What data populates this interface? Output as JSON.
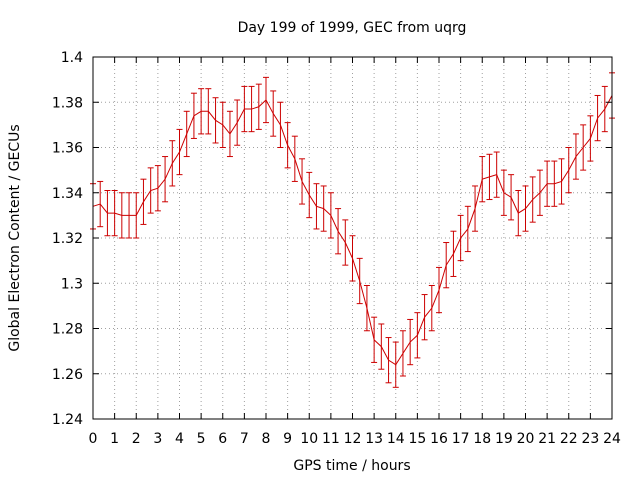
{
  "chart_data": {
    "type": "line",
    "title": "Day 199 of 1999, GEC from uqrg",
    "xlabel": "GPS time / hours",
    "ylabel": "Global Electron Content / GECUs",
    "xlim": [
      0,
      24
    ],
    "ylim": [
      1.24,
      1.4
    ],
    "grid": true,
    "x_ticks": [
      0,
      1,
      2,
      3,
      4,
      5,
      6,
      7,
      8,
      9,
      10,
      11,
      12,
      13,
      14,
      15,
      16,
      17,
      18,
      19,
      20,
      21,
      22,
      23,
      24
    ],
    "x_tick_labels": [
      "0",
      "1",
      "2",
      "3",
      "4",
      "5",
      "6",
      "7",
      "8",
      "9",
      "10",
      "11",
      "12",
      "13",
      "14",
      "15",
      "16",
      "17",
      "18",
      "19",
      "20",
      "21",
      "22",
      "23",
      "24"
    ],
    "y_ticks": [
      1.24,
      1.26,
      1.28,
      1.3,
      1.32,
      1.34,
      1.36,
      1.38,
      1.4
    ],
    "y_tick_labels": [
      "1.24",
      "1.26",
      "1.28",
      "1.3",
      "1.32",
      "1.34",
      "1.36",
      "1.38",
      "1.4"
    ],
    "series_color": "#cc0000",
    "series": [
      {
        "name": "GEC",
        "error": 0.01,
        "x": [
          0,
          0.333,
          0.667,
          1,
          1.333,
          1.667,
          2,
          2.333,
          2.667,
          3,
          3.333,
          3.667,
          4,
          4.333,
          4.667,
          5,
          5.333,
          5.667,
          6,
          6.333,
          6.667,
          7,
          7.333,
          7.667,
          8,
          8.333,
          8.667,
          9,
          9.333,
          9.667,
          10,
          10.333,
          10.667,
          11,
          11.333,
          11.667,
          12,
          12.333,
          12.667,
          13,
          13.333,
          13.667,
          14,
          14.333,
          14.667,
          15,
          15.333,
          15.667,
          16,
          16.333,
          16.667,
          17,
          17.333,
          17.667,
          18,
          18.333,
          18.667,
          19,
          19.333,
          19.667,
          20,
          20.333,
          20.667,
          21,
          21.333,
          21.667,
          22,
          22.333,
          22.667,
          23,
          23.333,
          23.667,
          24
        ],
        "values": [
          1.334,
          1.335,
          1.331,
          1.331,
          1.33,
          1.33,
          1.33,
          1.336,
          1.341,
          1.342,
          1.346,
          1.353,
          1.358,
          1.366,
          1.374,
          1.376,
          1.376,
          1.372,
          1.37,
          1.366,
          1.371,
          1.377,
          1.377,
          1.378,
          1.381,
          1.375,
          1.37,
          1.361,
          1.355,
          1.345,
          1.339,
          1.334,
          1.333,
          1.33,
          1.323,
          1.318,
          1.311,
          1.301,
          1.289,
          1.275,
          1.272,
          1.266,
          1.264,
          1.269,
          1.274,
          1.277,
          1.285,
          1.289,
          1.297,
          1.308,
          1.313,
          1.32,
          1.324,
          1.333,
          1.346,
          1.347,
          1.348,
          1.34,
          1.338,
          1.331,
          1.333,
          1.337,
          1.34,
          1.344,
          1.344,
          1.345,
          1.35,
          1.356,
          1.36,
          1.364,
          1.373,
          1.377,
          1.383
        ]
      }
    ]
  }
}
